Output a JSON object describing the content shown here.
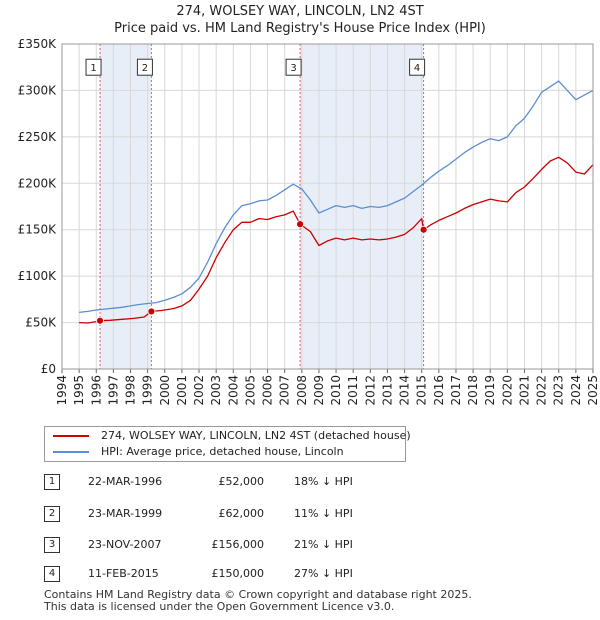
{
  "chart_data": {
    "type": "line",
    "title": "274, WOLSEY WAY, LINCOLN, LN2 4ST",
    "subtitle": "Price paid vs. HM Land Registry's House Price Index (HPI)",
    "xlabel": "",
    "ylabel": "",
    "xlim": [
      1994,
      2025
    ],
    "ylim": [
      0,
      350000
    ],
    "y_ticks": [
      {
        "value": 0,
        "label": "£0"
      },
      {
        "value": 50000,
        "label": "£50K"
      },
      {
        "value": 100000,
        "label": "£100K"
      },
      {
        "value": 150000,
        "label": "£150K"
      },
      {
        "value": 200000,
        "label": "£200K"
      },
      {
        "value": 250000,
        "label": "£250K"
      },
      {
        "value": 300000,
        "label": "£300K"
      },
      {
        "value": 350000,
        "label": "£350K"
      }
    ],
    "x_ticks": [
      "1994",
      "1995",
      "1996",
      "1997",
      "1998",
      "1999",
      "2000",
      "2001",
      "2002",
      "2003",
      "2004",
      "2005",
      "2006",
      "2007",
      "2008",
      "2009",
      "2010",
      "2011",
      "2012",
      "2013",
      "2014",
      "2015",
      "2016",
      "2017",
      "2018",
      "2019",
      "2020",
      "2021",
      "2022",
      "2023",
      "2024",
      "2025"
    ],
    "grid": true,
    "series": [
      {
        "name": "274, WOLSEY WAY, LINCOLN, LN2 4ST (detached house)",
        "color": "#cc0000",
        "points": [
          [
            1995.0,
            50000
          ],
          [
            1995.5,
            49500
          ],
          [
            1996.0,
            51000
          ],
          [
            1996.22,
            52000
          ],
          [
            1996.8,
            52500
          ],
          [
            1997.5,
            53500
          ],
          [
            1998.2,
            54500
          ],
          [
            1998.8,
            56000
          ],
          [
            1999.22,
            62000
          ],
          [
            1999.8,
            63000
          ],
          [
            2000.5,
            65000
          ],
          [
            2001.0,
            68000
          ],
          [
            2001.5,
            74000
          ],
          [
            2002.0,
            86000
          ],
          [
            2002.5,
            100000
          ],
          [
            2003.0,
            120000
          ],
          [
            2003.5,
            136000
          ],
          [
            2004.0,
            150000
          ],
          [
            2004.5,
            158000
          ],
          [
            2005.0,
            158000
          ],
          [
            2005.5,
            162000
          ],
          [
            2006.0,
            161000
          ],
          [
            2006.5,
            164000
          ],
          [
            2007.0,
            166000
          ],
          [
            2007.5,
            170000
          ],
          [
            2007.9,
            156000
          ],
          [
            2008.5,
            148000
          ],
          [
            2009.0,
            133000
          ],
          [
            2009.5,
            138000
          ],
          [
            2010.0,
            141000
          ],
          [
            2010.5,
            139000
          ],
          [
            2011.0,
            141000
          ],
          [
            2011.5,
            139000
          ],
          [
            2012.0,
            140000
          ],
          [
            2012.5,
            139000
          ],
          [
            2013.0,
            140000
          ],
          [
            2013.5,
            142000
          ],
          [
            2014.0,
            145000
          ],
          [
            2014.5,
            152000
          ],
          [
            2015.0,
            162000
          ],
          [
            2015.11,
            150000
          ],
          [
            2015.5,
            155000
          ],
          [
            2016.0,
            160000
          ],
          [
            2016.5,
            164000
          ],
          [
            2017.0,
            168000
          ],
          [
            2017.5,
            173000
          ],
          [
            2018.0,
            177000
          ],
          [
            2018.5,
            180000
          ],
          [
            2019.0,
            183000
          ],
          [
            2019.5,
            181000
          ],
          [
            2020.0,
            180000
          ],
          [
            2020.5,
            190000
          ],
          [
            2021.0,
            196000
          ],
          [
            2021.5,
            205000
          ],
          [
            2022.0,
            215000
          ],
          [
            2022.5,
            224000
          ],
          [
            2023.0,
            228000
          ],
          [
            2023.5,
            222000
          ],
          [
            2024.0,
            212000
          ],
          [
            2024.5,
            210000
          ],
          [
            2025.0,
            220000
          ]
        ]
      },
      {
        "name": "HPI: Average price, detached house, Lincoln",
        "color": "#5b8fd1",
        "points": [
          [
            1995.0,
            61000
          ],
          [
            1995.5,
            62000
          ],
          [
            1996.0,
            63500
          ],
          [
            1996.5,
            64500
          ],
          [
            1997.0,
            65500
          ],
          [
            1997.5,
            66500
          ],
          [
            1998.0,
            68000
          ],
          [
            1998.5,
            69500
          ],
          [
            1999.0,
            70500
          ],
          [
            1999.5,
            71500
          ],
          [
            2000.0,
            74000
          ],
          [
            2000.5,
            77000
          ],
          [
            2001.0,
            81000
          ],
          [
            2001.5,
            88000
          ],
          [
            2002.0,
            98000
          ],
          [
            2002.5,
            115000
          ],
          [
            2003.0,
            135000
          ],
          [
            2003.5,
            152000
          ],
          [
            2004.0,
            166000
          ],
          [
            2004.5,
            176000
          ],
          [
            2005.0,
            178000
          ],
          [
            2005.5,
            181000
          ],
          [
            2006.0,
            182000
          ],
          [
            2006.5,
            187000
          ],
          [
            2007.0,
            193000
          ],
          [
            2007.5,
            199000
          ],
          [
            2008.0,
            194000
          ],
          [
            2008.5,
            182000
          ],
          [
            2009.0,
            168000
          ],
          [
            2009.5,
            172000
          ],
          [
            2010.0,
            176000
          ],
          [
            2010.5,
            174000
          ],
          [
            2011.0,
            176000
          ],
          [
            2011.5,
            173000
          ],
          [
            2012.0,
            175000
          ],
          [
            2012.5,
            174000
          ],
          [
            2013.0,
            176000
          ],
          [
            2013.5,
            180000
          ],
          [
            2014.0,
            184000
          ],
          [
            2014.5,
            191000
          ],
          [
            2015.0,
            198000
          ],
          [
            2015.5,
            206000
          ],
          [
            2016.0,
            213000
          ],
          [
            2016.5,
            219000
          ],
          [
            2017.0,
            226000
          ],
          [
            2017.5,
            233000
          ],
          [
            2018.0,
            239000
          ],
          [
            2018.5,
            244000
          ],
          [
            2019.0,
            248000
          ],
          [
            2019.5,
            246000
          ],
          [
            2020.0,
            250000
          ],
          [
            2020.5,
            262000
          ],
          [
            2021.0,
            270000
          ],
          [
            2021.5,
            283000
          ],
          [
            2022.0,
            298000
          ],
          [
            2022.5,
            304000
          ],
          [
            2023.0,
            310000
          ],
          [
            2023.5,
            300000
          ],
          [
            2024.0,
            290000
          ],
          [
            2024.5,
            295000
          ],
          [
            2025.0,
            300000
          ]
        ]
      }
    ],
    "sales": [
      {
        "id": "1",
        "x": 1996.22,
        "price": 52000
      },
      {
        "id": "2",
        "x": 1999.22,
        "price": 62000
      },
      {
        "id": "3",
        "x": 2007.9,
        "price": 156000
      },
      {
        "id": "4",
        "x": 2015.11,
        "price": 150000
      }
    ],
    "marker_label_value": 325000
  },
  "colors": {
    "property_line": "#cc0000",
    "hpi_line": "#5b8fd1",
    "grid": "#d8d8d8",
    "vline": "#e06060",
    "shade": "#e8eef8"
  },
  "legend": {
    "property_label": "274, WOLSEY WAY, LINCOLN, LN2 4ST (detached house)",
    "hpi_label": "HPI: Average price, detached house, Lincoln"
  },
  "sales_table": [
    {
      "num": "1",
      "date": "22-MAR-1996",
      "price": "£52,000",
      "hpi": "18% ↓ HPI"
    },
    {
      "num": "2",
      "date": "23-MAR-1999",
      "price": "£62,000",
      "hpi": "11% ↓ HPI"
    },
    {
      "num": "3",
      "date": "23-NOV-2007",
      "price": "£156,000",
      "hpi": "21% ↓ HPI"
    },
    {
      "num": "4",
      "date": "11-FEB-2015",
      "price": "£150,000",
      "hpi": "27% ↓ HPI"
    }
  ],
  "footer": {
    "line1": "Contains HM Land Registry data © Crown copyright and database right 2025.",
    "line2": "This data is licensed under the Open Government Licence v3.0."
  }
}
